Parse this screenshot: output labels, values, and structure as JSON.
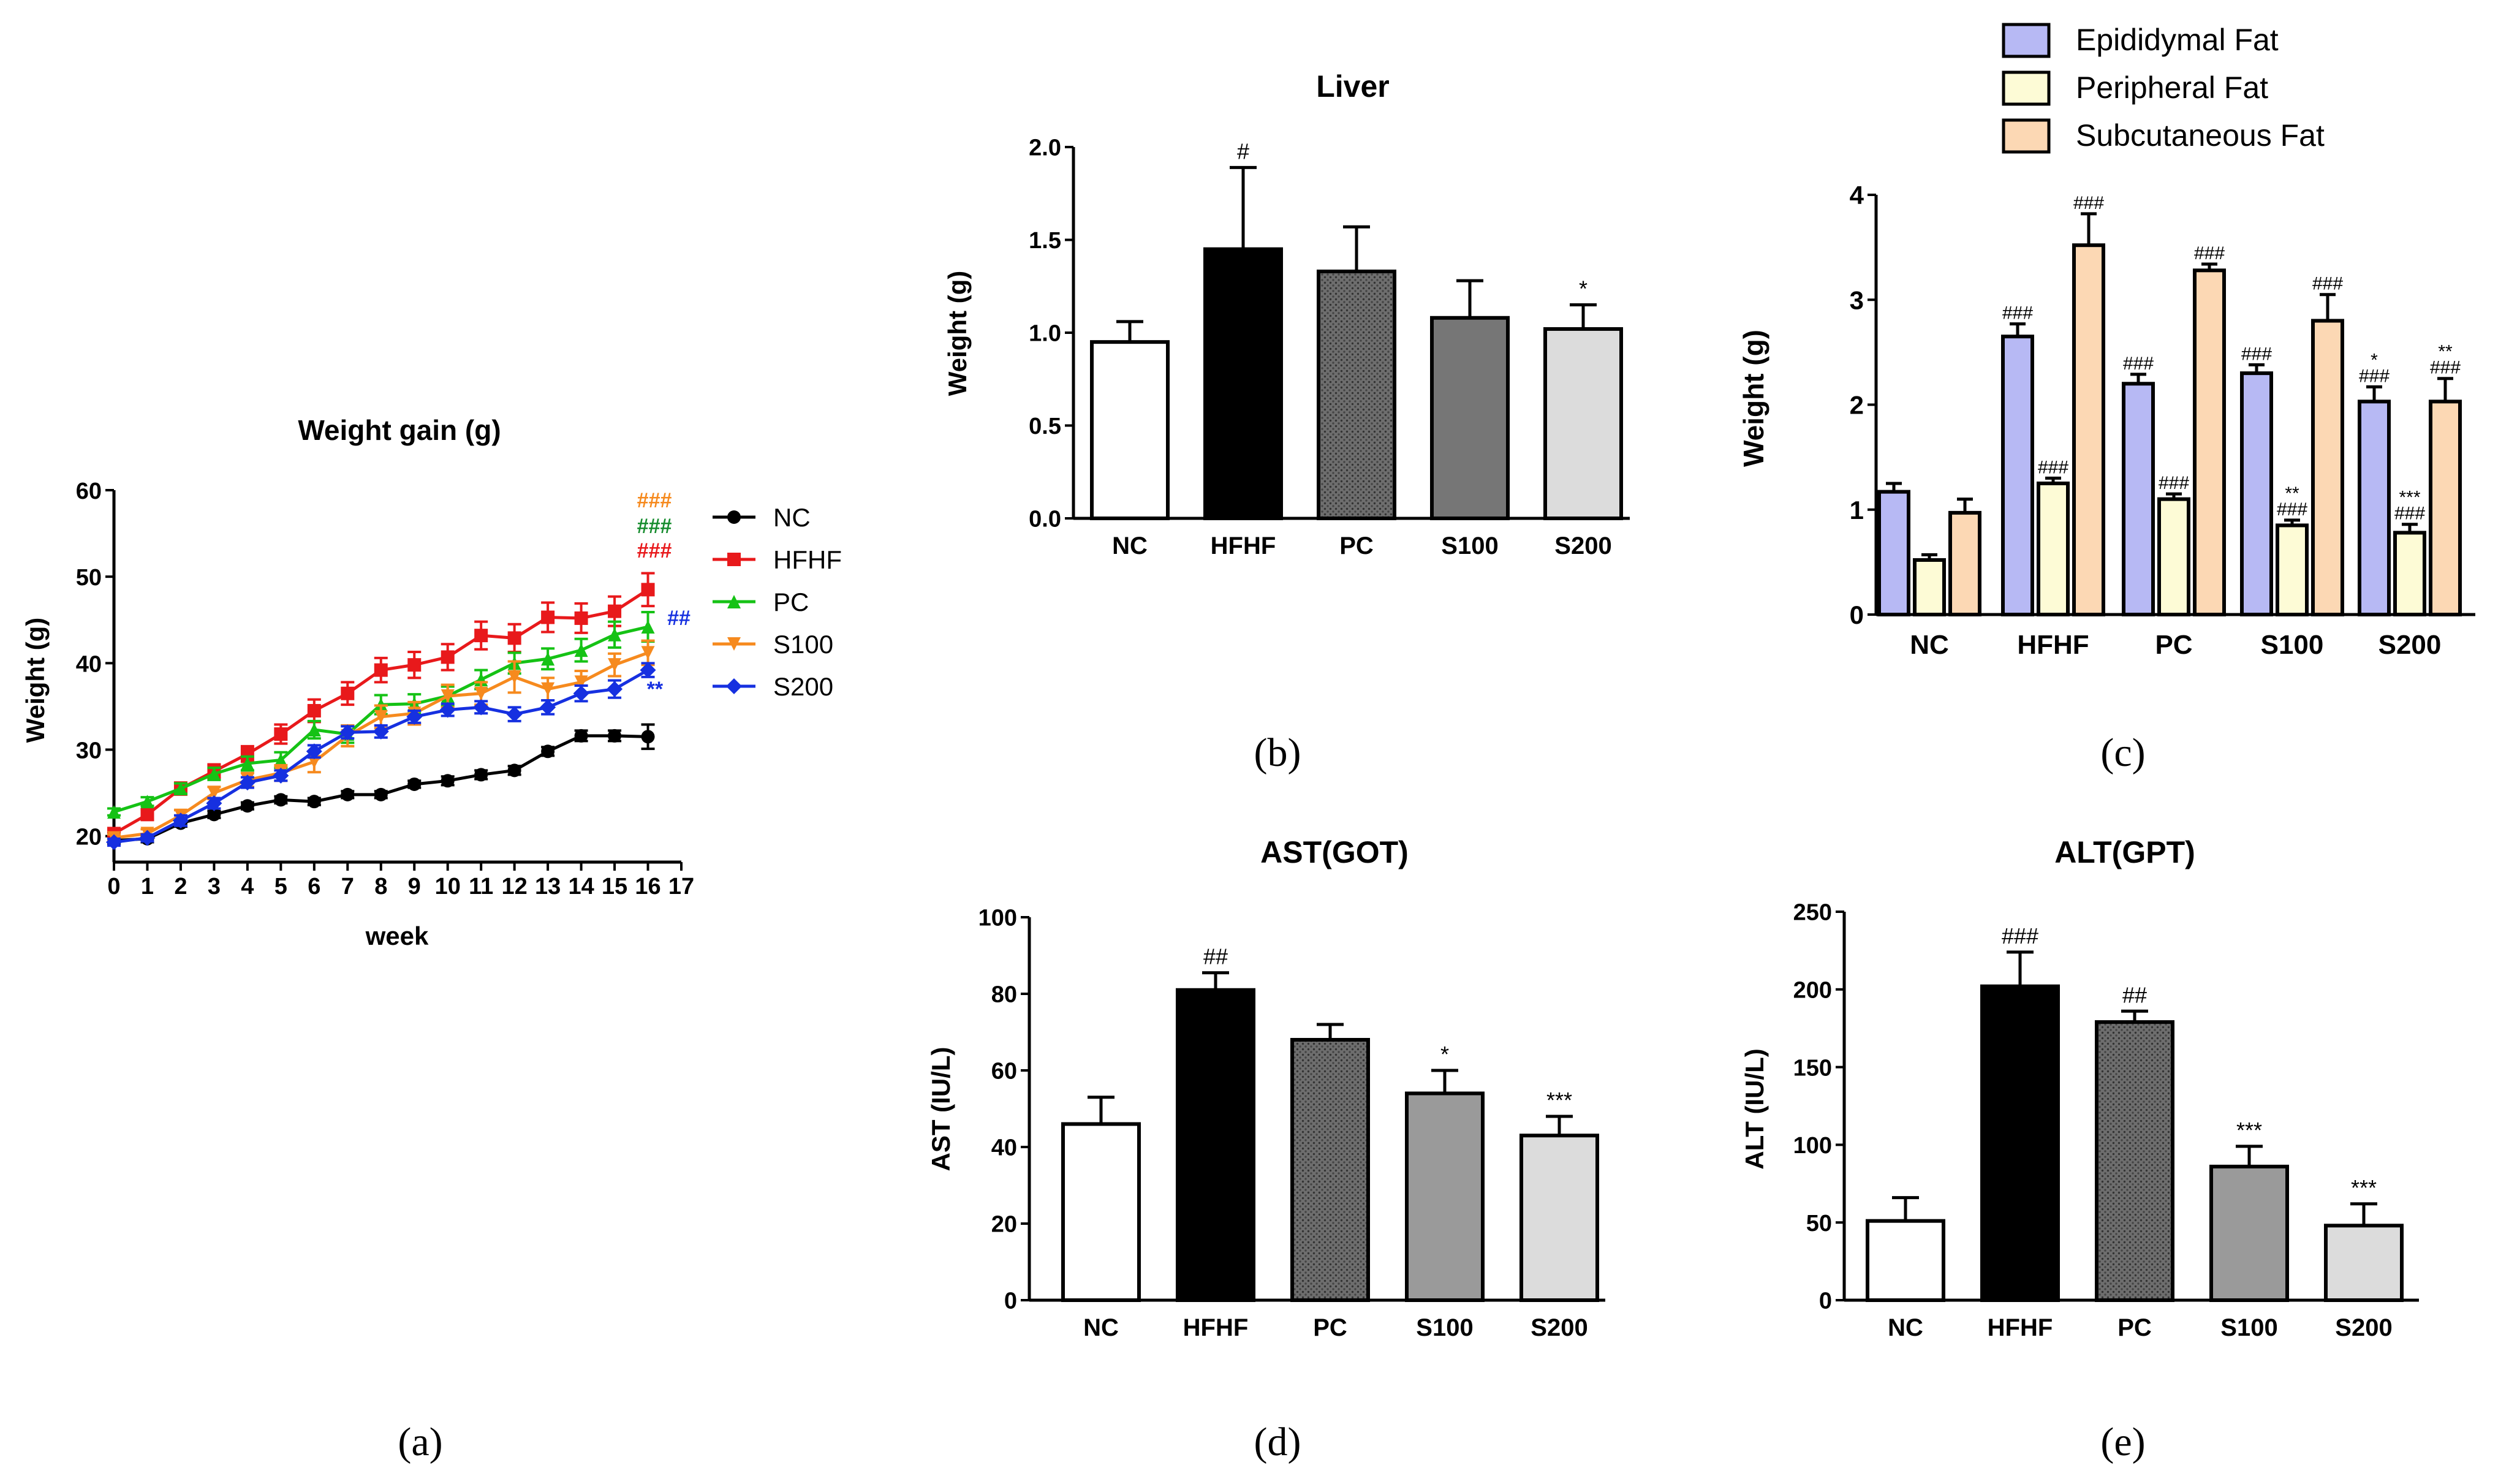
{
  "panels": {
    "a": "(a)",
    "b": "(b)",
    "c": "(c)",
    "d": "(d)",
    "e": "(e)"
  },
  "colors": {
    "NC": "#000000",
    "HFHF": "#e8191b",
    "PC": "#15c215",
    "S100": "#f68a1e",
    "S200": "#1630e0",
    "epi": "#b7b9f4",
    "peri": "#fdfbd6",
    "subq": "#fcd8b4",
    "darkgreen": "#168c2e"
  },
  "chart_data": [
    {
      "id": "a",
      "type": "line",
      "title": "Weight gain (g)",
      "xlabel": "week",
      "ylabel": "Weight (g)",
      "xlim": [
        0,
        17
      ],
      "ylim": [
        17,
        60
      ],
      "xticks": [
        "0",
        "1",
        "2",
        "3",
        "4",
        "5",
        "6",
        "7",
        "8",
        "9",
        "10",
        "11",
        "12",
        "13",
        "14",
        "15",
        "16",
        "17"
      ],
      "yticks": [
        "20",
        "30",
        "40",
        "50",
        "60"
      ],
      "x": [
        0,
        1,
        2,
        3,
        4,
        5,
        6,
        7,
        8,
        9,
        10,
        11,
        12,
        13,
        14,
        15,
        16
      ],
      "series": [
        {
          "name": "NC",
          "marker": "circle",
          "color": "#000000",
          "values": [
            19.5,
            19.7,
            21.5,
            22.5,
            23.5,
            24.2,
            24.0,
            24.8,
            24.8,
            26.0,
            26.4,
            27.1,
            27.6,
            29.8,
            31.6,
            31.6,
            31.5
          ],
          "err": [
            0.4,
            0.4,
            0.4,
            0.4,
            0.4,
            0.4,
            0.4,
            0.4,
            0.4,
            0.4,
            0.5,
            0.5,
            0.5,
            0.5,
            0.6,
            0.6,
            1.4
          ]
        },
        {
          "name": "HFHF",
          "marker": "square",
          "color": "#e8191b",
          "values": [
            20.3,
            22.5,
            25.5,
            27.5,
            29.5,
            31.8,
            34.5,
            36.5,
            39.2,
            39.8,
            40.7,
            43.2,
            42.9,
            45.3,
            45.2,
            46.0,
            48.5
          ],
          "err": [
            0.4,
            0.6,
            0.7,
            0.8,
            0.9,
            1.1,
            1.3,
            1.3,
            1.4,
            1.5,
            1.5,
            1.6,
            1.6,
            1.7,
            1.7,
            1.7,
            1.9
          ]
        },
        {
          "name": "PC",
          "marker": "triangle-up",
          "color": "#15c215",
          "values": [
            22.8,
            24.0,
            25.5,
            27.2,
            28.4,
            28.8,
            32.3,
            31.8,
            35.2,
            35.3,
            36.2,
            38.1,
            40.0,
            40.5,
            41.5,
            43.3,
            44.2
          ],
          "err": [
            0.4,
            0.5,
            0.6,
            0.7,
            0.8,
            0.9,
            1.0,
            1.0,
            1.1,
            1.1,
            1.1,
            1.1,
            1.2,
            1.2,
            1.3,
            1.5,
            1.7
          ]
        },
        {
          "name": "S100",
          "marker": "triangle-down",
          "color": "#f68a1e",
          "values": [
            19.8,
            20.3,
            22.4,
            25.0,
            26.5,
            27.3,
            28.6,
            31.6,
            33.8,
            34.2,
            36.2,
            36.5,
            38.4,
            37.0,
            37.8,
            39.8,
            41.2
          ],
          "err": [
            0.4,
            0.5,
            0.6,
            0.7,
            0.8,
            0.9,
            1.2,
            1.2,
            1.3,
            1.3,
            1.3,
            1.3,
            1.8,
            1.3,
            1.3,
            1.3,
            1.4
          ]
        },
        {
          "name": "S200",
          "marker": "diamond",
          "color": "#1630e0",
          "values": [
            19.3,
            19.8,
            21.8,
            23.8,
            26.2,
            27.0,
            29.8,
            32.0,
            32.1,
            33.8,
            34.6,
            34.9,
            34.1,
            34.9,
            36.5,
            37.0,
            39.2
          ],
          "err": [
            0.4,
            0.4,
            0.6,
            0.6,
            0.6,
            0.6,
            0.7,
            0.7,
            0.7,
            0.7,
            0.7,
            0.7,
            0.8,
            0.8,
            0.9,
            1.0,
            0.8
          ]
        }
      ],
      "annotations": [
        {
          "text": "###",
          "color": "#f68a1e"
        },
        {
          "text": "###",
          "color": "#168c2e"
        },
        {
          "text": "###",
          "color": "#e8191b"
        },
        {
          "text": "##",
          "color": "#1630e0"
        },
        {
          "text": "**",
          "color": "#1630e0"
        }
      ],
      "legend": [
        "NC",
        "HFHF",
        "PC",
        "S100",
        "S200"
      ],
      "legend_position": "right"
    },
    {
      "id": "b",
      "type": "bar",
      "title": "Liver",
      "xlabel": "",
      "ylabel": "Weight (g)",
      "ylim": [
        0,
        2.0
      ],
      "yticks": [
        "0.0",
        "0.5",
        "1.0",
        "1.5",
        "2.0"
      ],
      "categories": [
        "NC",
        "HFHF",
        "PC",
        "S100",
        "S200"
      ],
      "values": [
        0.95,
        1.45,
        1.33,
        1.08,
        1.02
      ],
      "err": [
        0.11,
        0.44,
        0.24,
        0.2,
        0.13
      ],
      "marks": [
        "",
        "#",
        "",
        "",
        "*"
      ],
      "fills": [
        "white",
        "black",
        "dots-dark",
        "gray-dark",
        "gray-light"
      ]
    },
    {
      "id": "c",
      "type": "bar",
      "title": "",
      "xlabel": "",
      "ylabel": "Weight (g)",
      "ylim": [
        0,
        4
      ],
      "yticks": [
        "0",
        "1",
        "2",
        "3",
        "4"
      ],
      "categories": [
        "NC",
        "HFHF",
        "PC",
        "S100",
        "S200"
      ],
      "series": [
        {
          "name": "Epididymal Fat",
          "values": [
            1.17,
            2.65,
            2.2,
            2.3,
            2.03
          ],
          "err": [
            0.08,
            0.12,
            0.09,
            0.08,
            0.14
          ],
          "marks": [
            "",
            "###",
            "###",
            "###",
            "*\n###"
          ]
        },
        {
          "name": "Peripheral Fat",
          "values": [
            0.52,
            1.25,
            1.1,
            0.85,
            0.78
          ],
          "err": [
            0.05,
            0.05,
            0.05,
            0.05,
            0.08
          ],
          "marks": [
            "",
            "###",
            "###",
            "**\n###",
            "***\n###"
          ]
        },
        {
          "name": "Subcutaneous Fat",
          "values": [
            0.97,
            3.52,
            3.28,
            2.8,
            2.03
          ],
          "err": [
            0.13,
            0.3,
            0.06,
            0.25,
            0.22
          ],
          "marks": [
            "",
            "###",
            "###",
            "###",
            "**\n###"
          ]
        }
      ],
      "legend_position": "top"
    },
    {
      "id": "d",
      "type": "bar",
      "title": "AST(GOT)",
      "xlabel": "",
      "ylabel": "AST (IU/L)",
      "ylim": [
        0,
        100
      ],
      "yticks": [
        "0",
        "20",
        "40",
        "60",
        "80",
        "100"
      ],
      "categories": [
        "NC",
        "HFHF",
        "PC",
        "S100",
        "S200"
      ],
      "values": [
        46,
        81,
        68,
        54,
        43
      ],
      "err": [
        7,
        4.5,
        4,
        6,
        5
      ],
      "marks": [
        "",
        "##",
        "",
        "*",
        "***"
      ],
      "fills": [
        "white",
        "black",
        "dots-dark",
        "gray-mid",
        "gray-light"
      ]
    },
    {
      "id": "e",
      "type": "bar",
      "title": "ALT(GPT)",
      "xlabel": "",
      "ylabel": "ALT (IU/L)",
      "ylim": [
        0,
        250
      ],
      "yticks": [
        "0",
        "50",
        "100",
        "150",
        "200",
        "250"
      ],
      "categories": [
        "NC",
        "HFHF",
        "PC",
        "S100",
        "S200"
      ],
      "values": [
        51,
        202,
        179,
        86,
        48
      ],
      "err": [
        15,
        22,
        7,
        13,
        14
      ],
      "marks": [
        "",
        "###",
        "##",
        "***",
        "***"
      ],
      "fills": [
        "white",
        "black",
        "dots-dark",
        "gray-mid",
        "gray-light"
      ]
    }
  ]
}
